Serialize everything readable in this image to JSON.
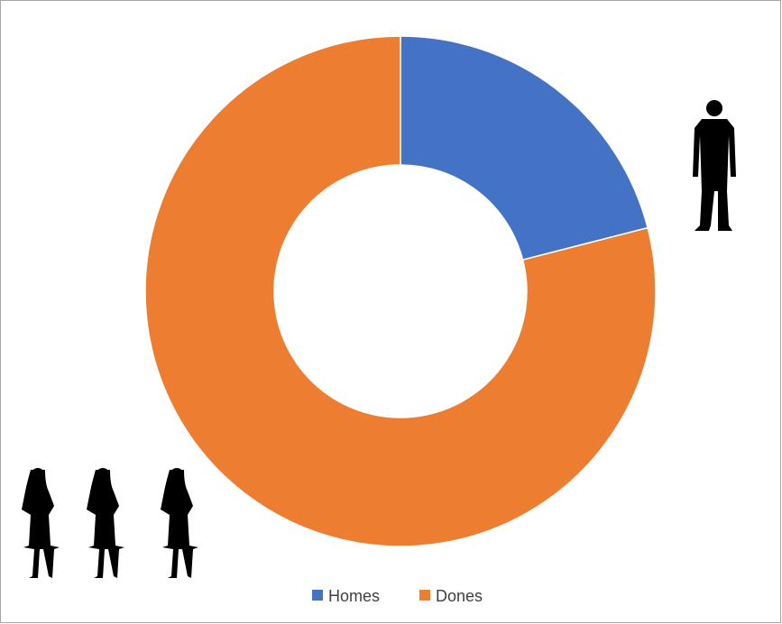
{
  "chart_data": {
    "type": "donut",
    "categories": [
      "Homes",
      "Dones"
    ],
    "values": [
      21,
      79
    ],
    "colors": [
      "#4472c4",
      "#ed7d31"
    ],
    "legend": "bottom"
  }
}
